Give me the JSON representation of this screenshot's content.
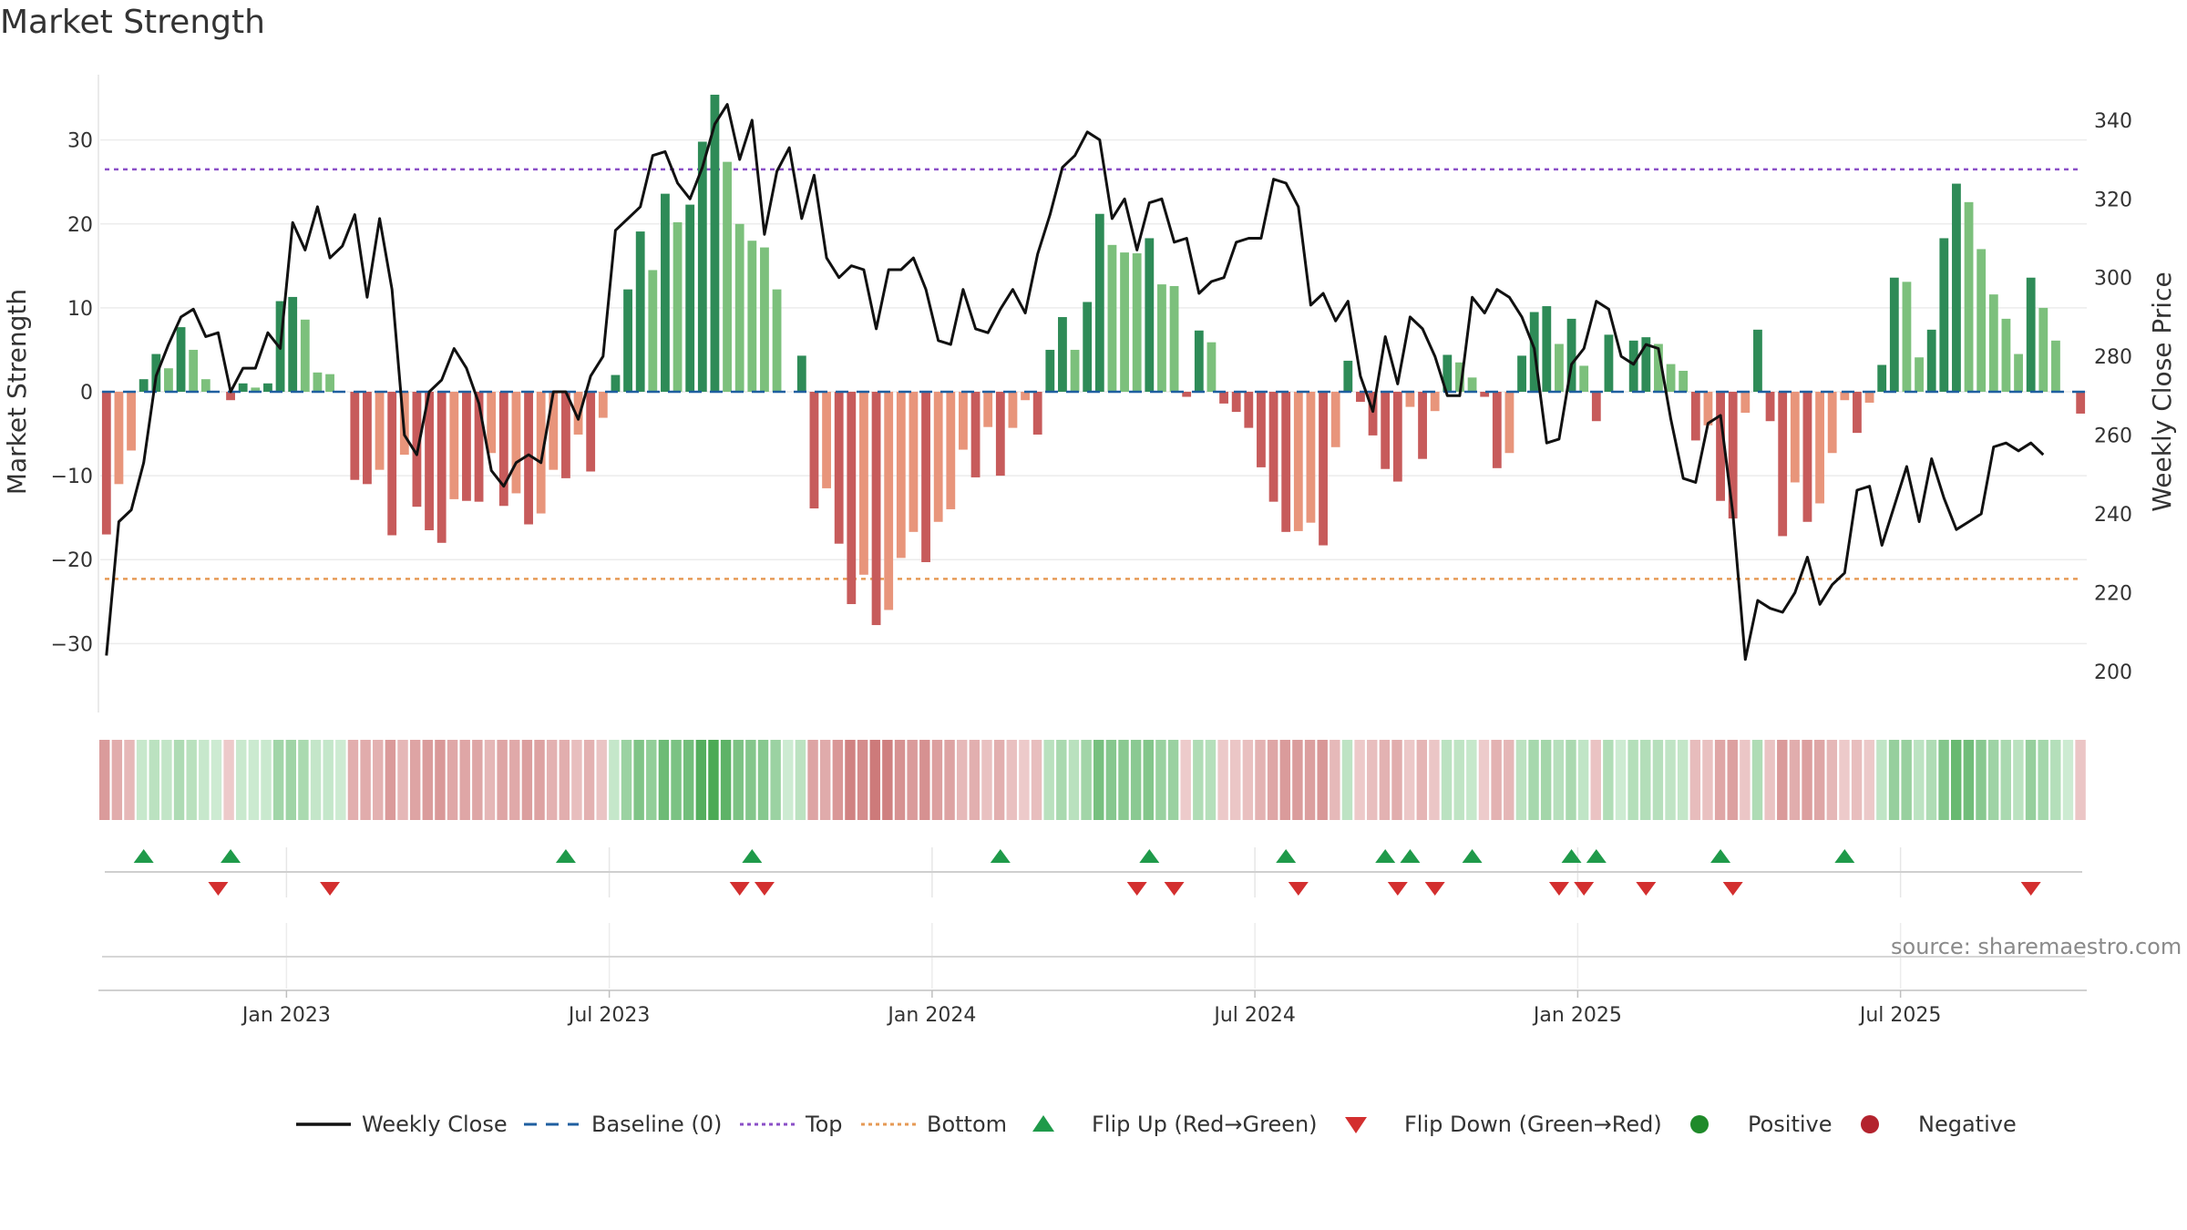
{
  "chart_data": {
    "type": "bar",
    "title": "Market Strength",
    "ylabel": "Market Strength",
    "y2label": "Weekly Close Price",
    "ylim": [
      -38,
      38
    ],
    "y_ticks": [
      30,
      20,
      10,
      0,
      -10,
      -20,
      -30
    ],
    "y_tick_labels": [
      "30",
      "20",
      "10",
      "0",
      "−10",
      "−20",
      "−30"
    ],
    "y2lim": [
      190,
      352
    ],
    "y2_ticks": [
      340,
      320,
      300,
      280,
      260,
      240,
      220,
      200
    ],
    "top_level": 26.5,
    "bottom_level": -22.3,
    "x_tick_labels": [
      "Jan 2023",
      "Jul 2023",
      "Jan 2024",
      "Jul 2024",
      "Jan 2025",
      "Jul 2025"
    ],
    "x_tick_weeks": [
      14.5,
      40.5,
      66.5,
      92.5,
      118.5,
      144.5
    ],
    "strength": [
      -17,
      -11,
      -7,
      1.5,
      4.5,
      2.8,
      7.7,
      5,
      1.5,
      0,
      -1,
      1,
      0.5,
      1,
      10.8,
      11.3,
      8.6,
      2.3,
      2.1,
      0,
      -10.5,
      -11,
      -9.3,
      -17.1,
      -7.5,
      -13.7,
      -16.5,
      -18,
      -12.8,
      -13,
      -13.1,
      -7.3,
      -13.6,
      -12.1,
      -15.8,
      -14.5,
      -9.3,
      -10.3,
      -5.1,
      -9.5,
      -3.1,
      2,
      12.2,
      19.1,
      14.5,
      23.6,
      20.2,
      22.3,
      29.8,
      35.4,
      27.4,
      20,
      18,
      17.2,
      12.2,
      0,
      4.3,
      -13.9,
      -11.5,
      -18.1,
      -25.3,
      -21.8,
      -27.8,
      -26,
      -19.8,
      -16.7,
      -20.3,
      -15.5,
      -14,
      -6.9,
      -10.2,
      -4.2,
      -10,
      -4.3,
      -1,
      -5.1,
      5,
      8.9,
      5,
      10.7,
      21.2,
      17.5,
      16.6,
      16.5,
      18.3,
      12.8,
      12.6,
      -0.6,
      7.3,
      5.9,
      -1.4,
      -2.4,
      -4.3,
      -9,
      -13.1,
      -16.7,
      -16.6,
      -15.6,
      -18.3,
      -6.6,
      3.7,
      -1.2,
      -5.2,
      -9.2,
      -10.7,
      -1.8,
      -8,
      -2.3,
      4.4,
      3.5,
      1.7,
      -0.6,
      -9.1,
      -7.3,
      4.3,
      9.5,
      10.2,
      5.7,
      8.7,
      3.1,
      -3.5,
      6.8,
      0,
      6.1,
      6.5,
      5.7,
      3.3,
      2.5,
      -5.8,
      -4,
      -13,
      -15.1,
      -2.5,
      7.4,
      -3.5,
      -17.2,
      -10.8,
      -15.5,
      -13.3,
      -7.3,
      -1,
      -4.9,
      -1.3,
      3.2,
      13.6,
      13.1,
      4.1,
      7.4,
      18.3,
      24.8,
      22.6,
      17,
      11.6,
      8.7,
      4.5,
      13.6,
      10,
      6.1,
      0,
      -2.6
    ],
    "weekly_close": [
      204,
      238,
      241,
      253,
      275,
      283,
      290,
      292,
      285,
      286,
      271,
      277,
      277,
      286,
      282,
      314,
      307,
      318,
      305,
      308,
      316,
      295,
      315,
      297,
      260,
      255,
      271,
      274,
      282,
      277,
      268,
      251,
      247,
      253,
      255,
      253,
      271,
      271,
      264,
      275,
      280,
      312,
      315,
      318,
      331,
      332,
      324,
      320,
      328,
      339,
      344,
      330,
      340,
      311,
      327,
      333,
      315,
      326,
      305,
      300,
      303,
      302,
      287,
      302,
      302,
      305,
      297,
      284,
      283,
      297,
      287,
      286,
      292,
      297,
      291,
      306,
      316,
      328,
      331,
      337,
      335,
      315,
      320,
      307,
      319,
      320,
      309,
      310,
      296,
      299,
      300,
      309,
      310,
      310,
      325,
      324,
      318,
      293,
      296,
      289,
      294,
      275,
      266,
      285,
      273,
      290,
      287,
      280,
      270,
      270,
      295,
      291,
      297,
      295,
      290,
      282,
      258,
      259,
      278,
      282,
      294,
      292,
      280,
      278,
      283,
      282,
      264,
      249,
      248,
      263,
      265,
      240,
      203,
      218,
      216,
      215,
      220,
      229,
      217,
      222,
      225,
      246,
      247,
      232,
      242,
      252,
      238,
      254,
      244,
      236,
      238,
      240,
      257,
      258,
      256,
      258,
      255
    ],
    "flip_up_weeks": [
      3,
      10,
      37,
      52,
      72,
      84,
      95,
      103,
      105,
      110,
      118,
      120,
      130,
      140
    ],
    "flip_down_weeks": [
      9,
      18,
      51,
      53,
      83,
      86,
      96,
      104,
      107,
      117,
      119,
      124,
      131,
      155
    ],
    "series": [
      {
        "name": "Weekly Close",
        "color": "#111111"
      },
      {
        "name": "Baseline (0)",
        "color": "#1f5fa0"
      },
      {
        "name": "Top",
        "color": "#8b4fc7"
      },
      {
        "name": "Bottom",
        "color": "#e69a55"
      },
      {
        "name": "Flip Up (Red→Green)",
        "color": "#1f9a4a"
      },
      {
        "name": "Flip Down (Green→Red)",
        "color": "#d32f2f"
      },
      {
        "name": "Positive",
        "color": "#1f8a2a"
      },
      {
        "name": "Negative",
        "color": "#b3232d"
      }
    ],
    "source": "source: sharemaestro.com"
  }
}
